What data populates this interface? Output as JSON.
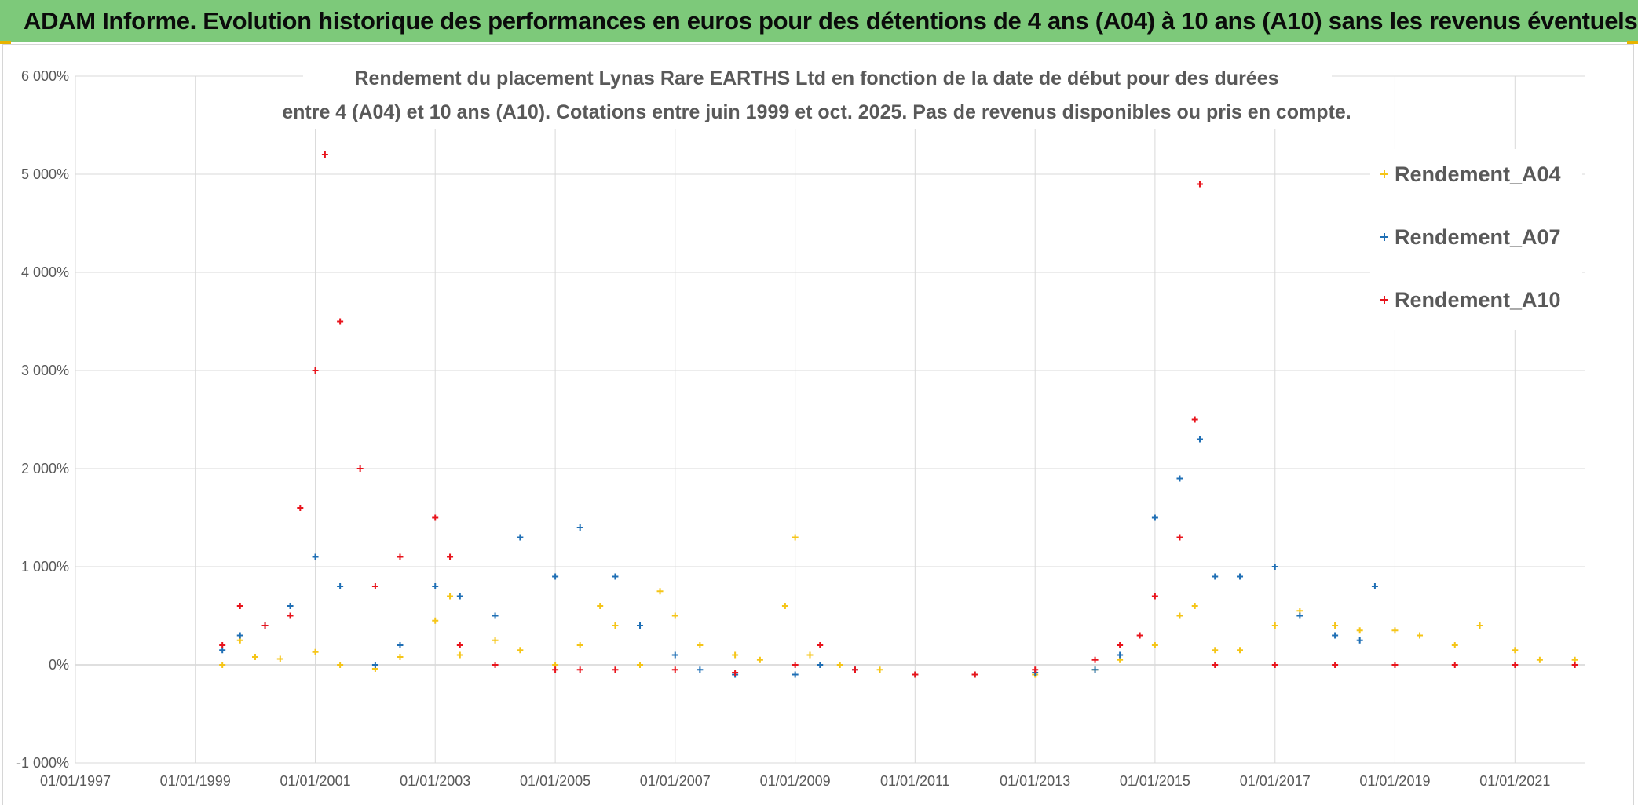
{
  "header": {
    "title": "ADAM Informe. Evolution historique des performances en euros pour des détentions de 4 ans (A04) à 10 ans (A10) sans les revenus éventuels"
  },
  "colors": {
    "banner": "#7dc97a",
    "A04": "#f5c518",
    "A07": "#1f6fb5",
    "A10": "#e8141c",
    "grid": "#d9d9d9"
  },
  "chart_data": {
    "type": "scatter",
    "title": "Rendement du placement Lynas Rare EARTHS Ltd en fonction de la date de début pour des durées",
    "subtitle": "entre 4 (A04) et 10 ans (A10). Cotations entre juin 1999 et oct. 2025. Pas de revenus disponibles ou pris en compte.",
    "xlabel": "",
    "ylabel": "",
    "x_ticks": [
      "01/01/1997",
      "01/01/1999",
      "01/01/2001",
      "01/01/2003",
      "01/01/2005",
      "01/01/2007",
      "01/01/2009",
      "01/01/2011",
      "01/01/2013",
      "01/01/2015",
      "01/01/2017",
      "01/01/2019",
      "01/01/2021"
    ],
    "y_ticks": [
      "-1 000%",
      "0%",
      "1 000%",
      "2 000%",
      "3 000%",
      "4 000%",
      "5 000%",
      "6 000%"
    ],
    "xlim": [
      "01/01/1997",
      "01/03/2022"
    ],
    "ylim": [
      -1000,
      6000
    ],
    "legend_position": "right",
    "grid": true,
    "series": [
      {
        "name": "Rendement_A04",
        "x": [
          "15/06/1999",
          "01/10/1999",
          "01/01/2000",
          "01/06/2000",
          "01/01/2001",
          "01/06/2001",
          "01/01/2002",
          "01/06/2002",
          "01/01/2003",
          "01/04/2003",
          "01/06/2003",
          "01/01/2004",
          "01/06/2004",
          "01/01/2005",
          "01/06/2005",
          "01/10/2005",
          "01/01/2006",
          "01/06/2006",
          "01/10/2006",
          "01/01/2007",
          "01/06/2007",
          "01/01/2008",
          "01/06/2008",
          "01/11/2008",
          "01/01/2009",
          "01/04/2009",
          "01/10/2009",
          "01/06/2010",
          "01/01/2011",
          "01/01/2012",
          "01/01/2013",
          "01/01/2014",
          "01/06/2014",
          "01/01/2015",
          "01/06/2015",
          "01/09/2015",
          "01/01/2016",
          "01/06/2016",
          "01/01/2017",
          "01/06/2017",
          "01/01/2018",
          "01/06/2018",
          "01/01/2019",
          "01/06/2019",
          "01/01/2020",
          "01/06/2020",
          "01/01/2021",
          "01/06/2021",
          "01/01/2022"
        ],
        "values": [
          0,
          250,
          80,
          60,
          130,
          0,
          -40,
          80,
          450,
          700,
          100,
          250,
          150,
          0,
          200,
          600,
          400,
          0,
          750,
          500,
          200,
          100,
          50,
          600,
          1300,
          100,
          0,
          -50,
          -100,
          -100,
          -100,
          -50,
          50,
          200,
          500,
          600,
          150,
          150,
          400,
          550,
          400,
          350,
          350,
          300,
          200,
          400,
          150,
          50,
          50
        ]
      },
      {
        "name": "Rendement_A07",
        "x": [
          "15/06/1999",
          "01/10/1999",
          "01/03/2000",
          "01/08/2000",
          "01/01/2001",
          "01/06/2001",
          "01/01/2002",
          "01/06/2002",
          "01/01/2003",
          "01/06/2003",
          "01/01/2004",
          "01/06/2004",
          "01/01/2005",
          "01/06/2005",
          "01/01/2006",
          "01/06/2006",
          "01/01/2007",
          "01/06/2007",
          "01/01/2008",
          "01/01/2009",
          "01/06/2009",
          "01/01/2010",
          "01/01/2011",
          "01/01/2012",
          "01/01/2013",
          "01/01/2014",
          "01/06/2014",
          "01/01/2015",
          "01/06/2015",
          "01/10/2015",
          "01/01/2016",
          "01/06/2016",
          "01/01/2017",
          "01/06/2017",
          "01/01/2018",
          "01/06/2018",
          "01/09/2018"
        ],
        "values": [
          150,
          300,
          400,
          600,
          1100,
          800,
          0,
          200,
          800,
          700,
          500,
          1300,
          900,
          1400,
          900,
          400,
          100,
          -50,
          -100,
          -100,
          0,
          -50,
          -100,
          -100,
          -80,
          -50,
          100,
          1500,
          1900,
          2300,
          900,
          900,
          1000,
          500,
          300,
          250,
          800
        ]
      },
      {
        "name": "Rendement_A10",
        "x": [
          "15/06/1999",
          "01/10/1999",
          "01/03/2000",
          "01/08/2000",
          "01/10/2000",
          "01/01/2001",
          "01/03/2001",
          "01/06/2001",
          "01/10/2001",
          "01/01/2002",
          "01/06/2002",
          "01/01/2003",
          "01/04/2003",
          "01/06/2003",
          "01/01/2004",
          "01/01/2005",
          "01/06/2005",
          "01/01/2006",
          "01/01/2007",
          "01/01/2008",
          "01/01/2009",
          "01/06/2009",
          "01/01/2010",
          "01/01/2011",
          "01/01/2012",
          "01/01/2013",
          "01/01/2014",
          "01/06/2014",
          "01/10/2014",
          "01/01/2015",
          "01/06/2015",
          "01/09/2015",
          "01/10/2015",
          "01/01/2016",
          "01/01/2017",
          "01/01/2018",
          "01/01/2019",
          "01/01/2020",
          "01/01/2021",
          "01/01/2022"
        ],
        "values": [
          200,
          600,
          400,
          500,
          1600,
          3000,
          5200,
          3500,
          2000,
          800,
          1100,
          1500,
          1100,
          200,
          0,
          -50,
          -50,
          -50,
          -50,
          -80,
          0,
          200,
          -50,
          -100,
          -100,
          -50,
          50,
          200,
          300,
          700,
          1300,
          2500,
          4900,
          0,
          0,
          0,
          0,
          0,
          0,
          0
        ]
      }
    ]
  }
}
